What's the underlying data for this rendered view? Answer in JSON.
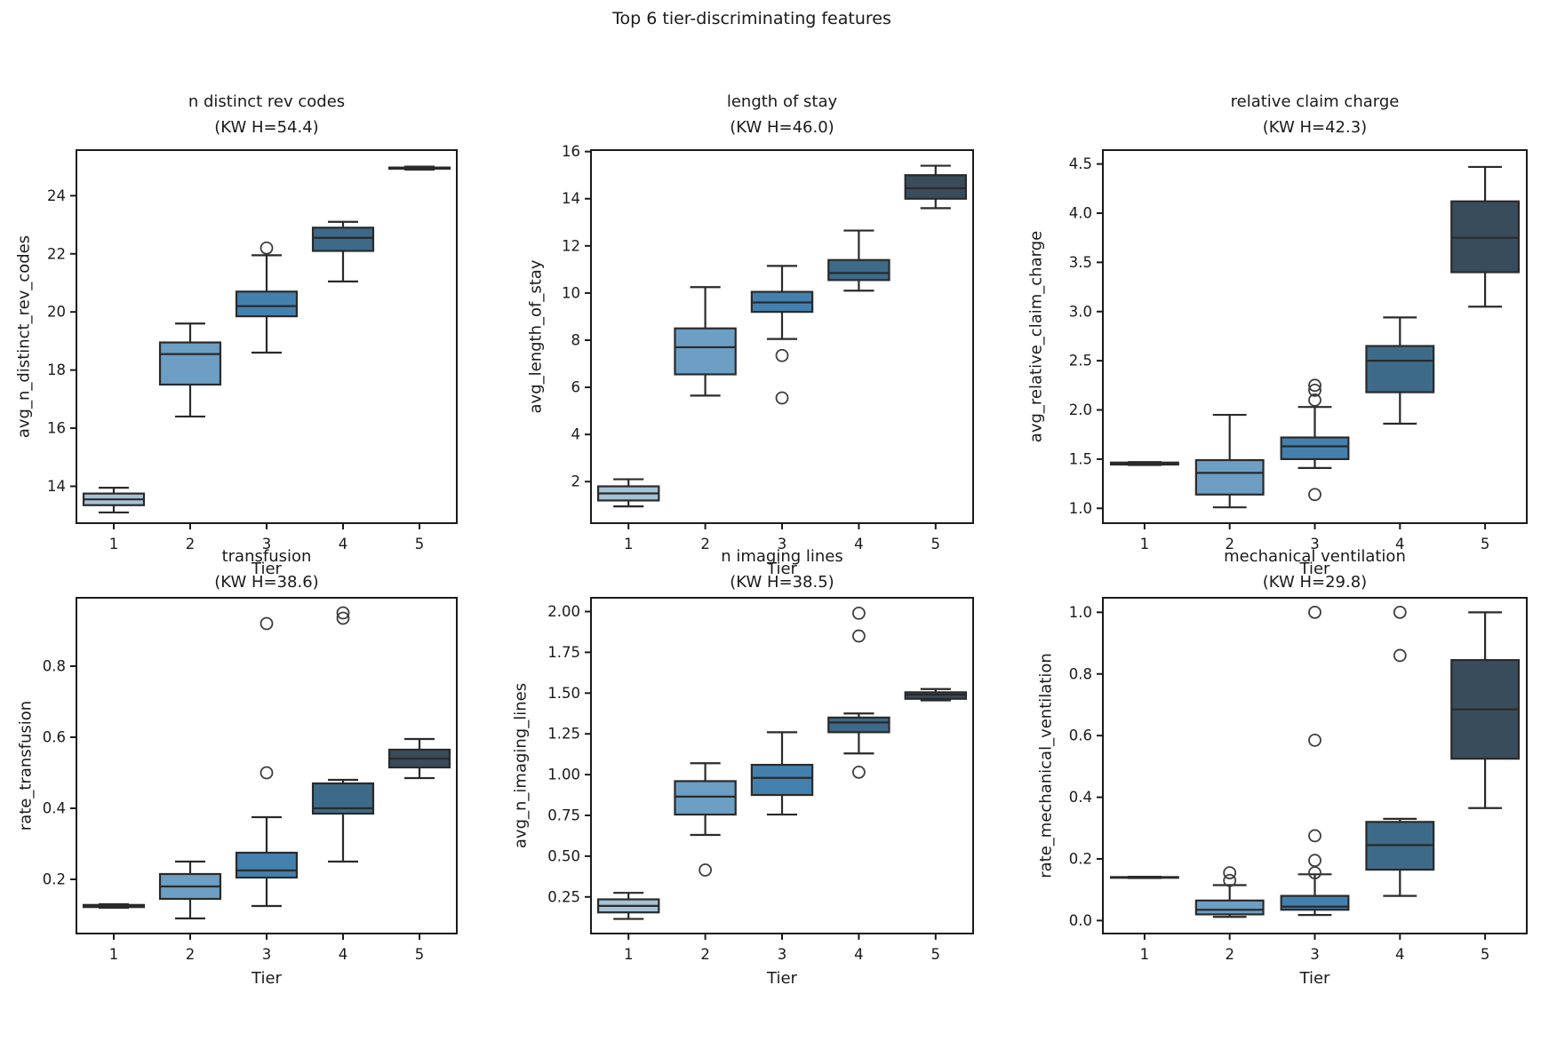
{
  "figure": {
    "suptitle": "Top 6 tier-discriminating features",
    "palette": [
      "#a5c2d6",
      "#6d9ec3",
      "#4380ae",
      "#3d6a88",
      "#394c5c"
    ],
    "box_edge_color": "#2a2a2a",
    "spine_color": "#1a1a1a",
    "outlier_color": "#3d3d3d",
    "text_color": "#1a1a1a"
  },
  "chart_data": [
    {
      "type": "box",
      "title": "n distinct rev codes",
      "subtitle": "(KW H=54.4)",
      "ylabel": "avg_n_distinct_rev_codes",
      "xlabel": "Tier",
      "categories": [
        "1",
        "2",
        "3",
        "4",
        "5"
      ],
      "ylim": [
        12.7,
        25.6
      ],
      "yticks": {
        "values": [
          14,
          16,
          18,
          20,
          22,
          24
        ],
        "labels": [
          "14",
          "16",
          "18",
          "20",
          "22",
          "24"
        ]
      },
      "boxes": [
        {
          "whislo": 13.1,
          "q1": 13.35,
          "med": 13.55,
          "q3": 13.75,
          "whishi": 13.95,
          "outliers": []
        },
        {
          "whislo": 16.4,
          "q1": 17.5,
          "med": 18.55,
          "q3": 18.95,
          "whishi": 19.6,
          "outliers": []
        },
        {
          "whislo": 18.6,
          "q1": 19.85,
          "med": 20.2,
          "q3": 20.7,
          "whishi": 21.95,
          "outliers": [
            22.2
          ]
        },
        {
          "whislo": 21.05,
          "q1": 22.1,
          "med": 22.55,
          "q3": 22.9,
          "whishi": 23.1,
          "outliers": []
        },
        {
          "whislo": 24.9,
          "q1": 24.93,
          "med": 24.95,
          "q3": 24.97,
          "whishi": 25.0,
          "outliers": []
        }
      ]
    },
    {
      "type": "box",
      "title": "length of stay",
      "subtitle": "(KW H=46.0)",
      "ylabel": "avg_length_of_stay",
      "xlabel": "Tier",
      "categories": [
        "1",
        "2",
        "3",
        "4",
        "5"
      ],
      "ylim": [
        0.2,
        16.1
      ],
      "yticks": {
        "values": [
          2,
          4,
          6,
          8,
          10,
          12,
          14,
          16
        ],
        "labels": [
          "2",
          "4",
          "6",
          "8",
          "10",
          "12",
          "14",
          "16"
        ]
      },
      "boxes": [
        {
          "whislo": 0.95,
          "q1": 1.2,
          "med": 1.5,
          "q3": 1.8,
          "whishi": 2.1,
          "outliers": []
        },
        {
          "whislo": 5.65,
          "q1": 6.55,
          "med": 7.7,
          "q3": 8.5,
          "whishi": 10.25,
          "outliers": []
        },
        {
          "whislo": 8.05,
          "q1": 9.2,
          "med": 9.6,
          "q3": 10.05,
          "whishi": 11.15,
          "outliers": [
            7.35,
            5.55
          ]
        },
        {
          "whislo": 10.1,
          "q1": 10.55,
          "med": 10.85,
          "q3": 11.4,
          "whishi": 12.65,
          "outliers": []
        },
        {
          "whislo": 13.6,
          "q1": 14.0,
          "med": 14.45,
          "q3": 15.0,
          "whishi": 15.4,
          "outliers": []
        }
      ]
    },
    {
      "type": "box",
      "title": "relative claim charge",
      "subtitle": "(KW H=42.3)",
      "ylabel": "avg_relative_claim_charge",
      "xlabel": "Tier",
      "categories": [
        "1",
        "2",
        "3",
        "4",
        "5"
      ],
      "ylim": [
        0.84,
        4.65
      ],
      "yticks": {
        "values": [
          1.0,
          1.5,
          2.0,
          2.5,
          3.0,
          3.5,
          4.0,
          4.5
        ],
        "labels": [
          "1.0",
          "1.5",
          "2.0",
          "2.5",
          "3.0",
          "3.5",
          "4.0",
          "4.5"
        ]
      },
      "boxes": [
        {
          "whislo": 1.44,
          "q1": 1.445,
          "med": 1.455,
          "q3": 1.465,
          "whishi": 1.47,
          "outliers": []
        },
        {
          "whislo": 1.01,
          "q1": 1.14,
          "med": 1.36,
          "q3": 1.49,
          "whishi": 1.95,
          "outliers": []
        },
        {
          "whislo": 1.41,
          "q1": 1.5,
          "med": 1.63,
          "q3": 1.72,
          "whishi": 2.03,
          "outliers": [
            2.25,
            2.2,
            2.1,
            1.14
          ]
        },
        {
          "whislo": 1.86,
          "q1": 2.18,
          "med": 2.5,
          "q3": 2.65,
          "whishi": 2.94,
          "outliers": []
        },
        {
          "whislo": 3.05,
          "q1": 3.4,
          "med": 3.75,
          "q3": 4.12,
          "whishi": 4.47,
          "outliers": []
        }
      ]
    },
    {
      "type": "box",
      "title": "transfusion",
      "subtitle": "(KW H=38.6)",
      "ylabel": "rate_transfusion",
      "xlabel": "Tier",
      "categories": [
        "1",
        "2",
        "3",
        "4",
        "5"
      ],
      "ylim": [
        0.045,
        0.995
      ],
      "yticks": {
        "values": [
          0.2,
          0.4,
          0.6,
          0.8
        ],
        "labels": [
          "0.2",
          "0.4",
          "0.6",
          "0.8"
        ]
      },
      "boxes": [
        {
          "whislo": 0.12,
          "q1": 0.122,
          "med": 0.125,
          "q3": 0.128,
          "whishi": 0.13,
          "outliers": []
        },
        {
          "whislo": 0.09,
          "q1": 0.145,
          "med": 0.18,
          "q3": 0.215,
          "whishi": 0.25,
          "outliers": []
        },
        {
          "whislo": 0.125,
          "q1": 0.205,
          "med": 0.225,
          "q3": 0.275,
          "whishi": 0.375,
          "outliers": [
            0.5,
            0.92
          ]
        },
        {
          "whislo": 0.25,
          "q1": 0.385,
          "med": 0.4,
          "q3": 0.47,
          "whishi": 0.48,
          "outliers": [
            0.935,
            0.95
          ]
        },
        {
          "whislo": 0.485,
          "q1": 0.515,
          "med": 0.54,
          "q3": 0.565,
          "whishi": 0.595,
          "outliers": []
        }
      ]
    },
    {
      "type": "box",
      "title": "n imaging lines",
      "subtitle": "(KW H=38.5)",
      "ylabel": "avg_n_imaging_lines",
      "xlabel": "Tier",
      "categories": [
        "1",
        "2",
        "3",
        "4",
        "5"
      ],
      "ylim": [
        0.02,
        2.09
      ],
      "yticks": {
        "values": [
          0.25,
          0.5,
          0.75,
          1.0,
          1.25,
          1.5,
          1.75,
          2.0
        ],
        "labels": [
          "0.25",
          "0.50",
          "0.75",
          "1.00",
          "1.25",
          "1.50",
          "1.75",
          "2.00"
        ]
      },
      "boxes": [
        {
          "whislo": 0.115,
          "q1": 0.155,
          "med": 0.195,
          "q3": 0.235,
          "whishi": 0.275,
          "outliers": []
        },
        {
          "whislo": 0.63,
          "q1": 0.755,
          "med": 0.865,
          "q3": 0.96,
          "whishi": 1.07,
          "outliers": [
            0.415
          ]
        },
        {
          "whislo": 0.755,
          "q1": 0.875,
          "med": 0.98,
          "q3": 1.06,
          "whishi": 1.26,
          "outliers": []
        },
        {
          "whislo": 1.13,
          "q1": 1.26,
          "med": 1.32,
          "q3": 1.35,
          "whishi": 1.375,
          "outliers": [
            1.015,
            1.85,
            1.99
          ]
        },
        {
          "whislo": 1.455,
          "q1": 1.465,
          "med": 1.49,
          "q3": 1.505,
          "whishi": 1.525,
          "outliers": []
        }
      ]
    },
    {
      "type": "box",
      "title": "mechanical ventilation",
      "subtitle": "(KW H=29.8)",
      "ylabel": "rate_mechanical_ventilation",
      "xlabel": "Tier",
      "categories": [
        "1",
        "2",
        "3",
        "4",
        "5"
      ],
      "ylim": [
        -0.045,
        1.05
      ],
      "yticks": {
        "values": [
          0.0,
          0.2,
          0.4,
          0.6,
          0.8,
          1.0
        ],
        "labels": [
          "0.0",
          "0.2",
          "0.4",
          "0.6",
          "0.8",
          "1.0"
        ]
      },
      "boxes": [
        {
          "whislo": 0.138,
          "q1": 0.139,
          "med": 0.14,
          "q3": 0.141,
          "whishi": 0.142,
          "outliers": []
        },
        {
          "whislo": 0.012,
          "q1": 0.02,
          "med": 0.035,
          "q3": 0.065,
          "whishi": 0.115,
          "outliers": [
            0.13,
            0.155
          ]
        },
        {
          "whislo": 0.018,
          "q1": 0.035,
          "med": 0.045,
          "q3": 0.08,
          "whishi": 0.15,
          "outliers": [
            0.155,
            0.195,
            0.275,
            0.585,
            1.0
          ]
        },
        {
          "whislo": 0.08,
          "q1": 0.165,
          "med": 0.245,
          "q3": 0.32,
          "whishi": 0.33,
          "outliers": [
            0.86,
            1.0
          ]
        },
        {
          "whislo": 0.365,
          "q1": 0.525,
          "med": 0.685,
          "q3": 0.845,
          "whishi": 1.0,
          "outliers": []
        }
      ]
    }
  ]
}
